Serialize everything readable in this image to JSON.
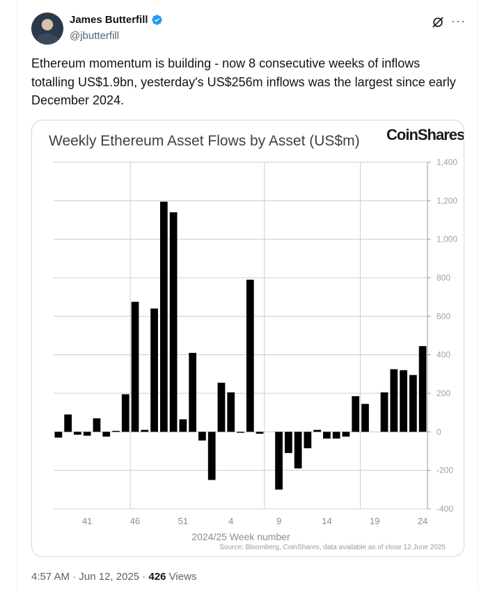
{
  "author": {
    "name": "James Butterfill",
    "handle": "@jbutterfill"
  },
  "tweet": {
    "text": "Ethereum momentum is building - now 8 consecutive weeks of inflows totalling US$1.9bn, yesterday's US$256m inflows was the largest since early December 2024."
  },
  "meta": {
    "time": "4:57 AM",
    "separator": " · ",
    "date": "Jun 12, 2025",
    "separator2": " · ",
    "views_count": "426",
    "views_label": " Views"
  },
  "chart_data": {
    "type": "bar",
    "title": "Weekly Ethereum Asset Flows by Asset (US$m)",
    "brand": "CoinShares",
    "xlabel": "2024/25 Week number",
    "source": "Source: Bloomberg, CoinShares, data available as of close 12 June 2025",
    "ylim": [
      -400,
      1400
    ],
    "yticks": [
      1400,
      1200,
      1000,
      800,
      600,
      400,
      200,
      0,
      -200,
      -400
    ],
    "ytick_labels": [
      "1,400",
      "1,200",
      "1,000",
      "800",
      "600",
      "400",
      "200",
      "0",
      "-200",
      "-400"
    ],
    "xtick_labels": [
      "41",
      "46",
      "51",
      "4",
      "9",
      "14",
      "19",
      "24"
    ],
    "xtick_indices": [
      3,
      8,
      13,
      18,
      23,
      28,
      33,
      38
    ],
    "vgrid_indices": [
      7.5,
      21.5,
      31.5
    ],
    "categories": [
      "38",
      "39",
      "40",
      "41",
      "42",
      "43",
      "44",
      "45",
      "46",
      "47",
      "48",
      "49",
      "50",
      "51",
      "52",
      "1",
      "2",
      "3",
      "4",
      "5",
      "6",
      "7",
      "8",
      "9",
      "10",
      "11",
      "12",
      "13",
      "14",
      "15",
      "16",
      "17",
      "18",
      "19",
      "20",
      "21",
      "22",
      "23",
      "24"
    ],
    "values": [
      -30,
      90,
      -15,
      -20,
      70,
      -25,
      5,
      195,
      675,
      10,
      640,
      1195,
      1140,
      65,
      410,
      -45,
      -250,
      255,
      205,
      -5,
      790,
      -10,
      0,
      -300,
      -110,
      -190,
      -85,
      10,
      -35,
      -35,
      -25,
      185,
      145,
      0,
      205,
      325,
      320,
      295,
      445
    ]
  }
}
